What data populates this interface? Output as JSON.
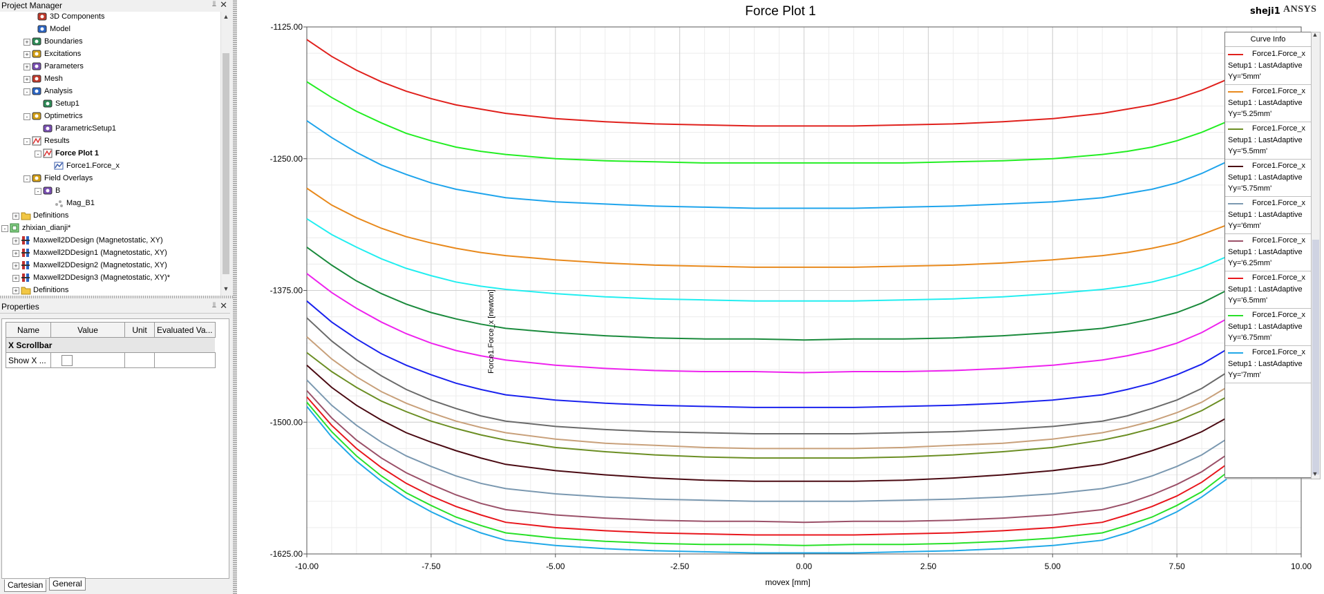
{
  "project_manager": {
    "title": "Project Manager",
    "tree": [
      {
        "label": "3D Components",
        "icon": "3d-components-icon",
        "expand": ""
      },
      {
        "label": "Model",
        "icon": "model-icon",
        "expand": ""
      },
      {
        "label": "Boundaries",
        "icon": "boundaries-icon",
        "expand": "+"
      },
      {
        "label": "Excitations",
        "icon": "excitations-icon",
        "expand": "+"
      },
      {
        "label": "Parameters",
        "icon": "parameters-icon",
        "expand": "+"
      },
      {
        "label": "Mesh",
        "icon": "mesh-icon",
        "expand": "+"
      },
      {
        "label": "Analysis",
        "icon": "analysis-icon",
        "expand": "−"
      },
      {
        "label": "Setup1",
        "icon": "setup-icon",
        "expand": ""
      },
      {
        "label": "Optimetrics",
        "icon": "optimetrics-icon",
        "expand": "−"
      },
      {
        "label": "ParametricSetup1",
        "icon": "parametric-setup-icon",
        "expand": ""
      },
      {
        "label": "Results",
        "icon": "results-icon",
        "expand": "−"
      },
      {
        "label": "Force Plot 1",
        "icon": "force-plot-icon",
        "expand": "−"
      },
      {
        "label": "Force1.Force_x",
        "icon": "trace-icon",
        "expand": ""
      },
      {
        "label": "Field Overlays",
        "icon": "field-overlays-icon",
        "expand": "−"
      },
      {
        "label": "B",
        "icon": "b-field-icon",
        "expand": "−"
      },
      {
        "label": "Mag_B1",
        "icon": "mag-plot-icon",
        "expand": ""
      },
      {
        "label": "Definitions",
        "icon": "folder-icon",
        "expand": "+"
      },
      {
        "label": "zhixian_dianji*",
        "icon": "project-icon",
        "expand": "−"
      },
      {
        "label": "Maxwell2DDesign (Magnetostatic, XY)",
        "icon": "design-icon",
        "expand": "+"
      },
      {
        "label": "Maxwell2DDesign1 (Magnetostatic, XY)",
        "icon": "design-icon",
        "expand": "+"
      },
      {
        "label": "Maxwell2DDesign2 (Magnetostatic, XY)",
        "icon": "design-icon",
        "expand": "+"
      },
      {
        "label": "Maxwell2DDesign3 (Magnetostatic, XY)*",
        "icon": "design-icon",
        "expand": "+"
      },
      {
        "label": "Definitions",
        "icon": "folder-icon",
        "expand": "+"
      }
    ]
  },
  "properties": {
    "title": "Properties",
    "columns": [
      "Name",
      "Value",
      "Unit",
      "Evaluated Va..."
    ],
    "group": "X Scrollbar",
    "row_name": "Show X ...",
    "tabs": [
      "Cartesian",
      "General"
    ]
  },
  "plot": {
    "design_name": "sheji1",
    "brand": "ANSYS"
  },
  "legend": {
    "title": "Curve Info",
    "setup": "Setup1 : LastAdaptive"
  },
  "chart_data": {
    "type": "line",
    "title": "Force Plot 1",
    "xlabel": "movex [mm]",
    "ylabel": "Force1.Force_x [newton]",
    "xlim": [
      -10,
      10
    ],
    "ylim": [
      -1625,
      -1125
    ],
    "x_ticks": [
      "-10.00",
      "-7.50",
      "-5.00",
      "-2.50",
      "0.00",
      "2.50",
      "5.00",
      "7.50",
      "10.00"
    ],
    "y_ticks": [
      "-1125.00",
      "-1250.00",
      "-1375.00",
      "-1500.00",
      "-1625.00"
    ],
    "grid": true,
    "legend_position": "right",
    "x": [
      -10,
      -9.5,
      -9,
      -8.5,
      -8,
      -7.5,
      -7,
      -6.5,
      -6,
      -5,
      -4,
      -3,
      -2,
      -1,
      0,
      1,
      2,
      3,
      4,
      5,
      6,
      6.5,
      7,
      7.5,
      8,
      8.5
    ],
    "series": [
      {
        "name": "Force1.Force_x",
        "variation": "Yy='5mm'",
        "color": "#e0201c",
        "values": [
          -1137,
          -1153,
          -1166,
          -1177,
          -1186,
          -1193,
          -1199,
          -1203,
          -1207,
          -1212,
          -1215,
          -1217,
          -1218,
          -1219,
          -1219,
          -1219,
          -1218,
          -1217,
          -1215,
          -1212,
          -1207,
          -1203,
          -1199,
          -1193,
          -1185,
          -1175
        ]
      },
      {
        "name": "Force1.Force_x",
        "variation": "Yy='5.25mm'",
        "color": "#e8891c",
        "values": [
          -1278,
          -1294,
          -1306,
          -1316,
          -1324,
          -1330,
          -1335,
          -1339,
          -1342,
          -1346,
          -1349,
          -1351,
          -1352,
          -1353,
          -1353,
          -1353,
          -1352,
          -1351,
          -1349,
          -1346,
          -1342,
          -1339,
          -1335,
          -1330,
          -1322,
          -1313
        ]
      },
      {
        "name": "Force1.Force_x",
        "variation": "Yy='5.5mm'",
        "color": "#6b8e23",
        "values": [
          -1434,
          -1452,
          -1467,
          -1480,
          -1490,
          -1499,
          -1506,
          -1512,
          -1517,
          -1524,
          -1528,
          -1531,
          -1533,
          -1534,
          -1534,
          -1534,
          -1533,
          -1531,
          -1528,
          -1524,
          -1517,
          -1512,
          -1506,
          -1499,
          -1489,
          -1476
        ]
      },
      {
        "name": "Force1.Force_x",
        "variation": "Yy='5.75mm'",
        "color": "#4a0a12",
        "values": [
          -1446,
          -1467,
          -1484,
          -1498,
          -1510,
          -1519,
          -1527,
          -1534,
          -1540,
          -1546,
          -1550,
          -1553,
          -1555,
          -1556,
          -1556,
          -1556,
          -1555,
          -1553,
          -1550,
          -1546,
          -1540,
          -1534,
          -1527,
          -1519,
          -1509,
          -1496
        ]
      },
      {
        "name": "Force1.Force_x",
        "variation": "Yy='6mm'",
        "color": "#7a98b0",
        "values": [
          -1460,
          -1484,
          -1503,
          -1519,
          -1532,
          -1542,
          -1551,
          -1558,
          -1563,
          -1568,
          -1571,
          -1573,
          -1574,
          -1575,
          -1575,
          -1575,
          -1574,
          -1573,
          -1571,
          -1568,
          -1563,
          -1558,
          -1551,
          -1542,
          -1531,
          -1516
        ]
      },
      {
        "name": "Force1.Force_x",
        "variation": "Yy='6.25mm'",
        "color": "#9a5068",
        "values": [
          -1470,
          -1496,
          -1517,
          -1534,
          -1548,
          -1559,
          -1569,
          -1577,
          -1583,
          -1588,
          -1591,
          -1593,
          -1594,
          -1594,
          -1595,
          -1594,
          -1594,
          -1593,
          -1591,
          -1588,
          -1583,
          -1577,
          -1569,
          -1559,
          -1547,
          -1531
        ]
      },
      {
        "name": "Force1.Force_x",
        "variation": "Yy='6.5mm'",
        "color": "#e8161c",
        "values": [
          -1476,
          -1503,
          -1525,
          -1543,
          -1558,
          -1570,
          -1580,
          -1588,
          -1595,
          -1600,
          -1603,
          -1605,
          -1606,
          -1607,
          -1607,
          -1607,
          -1606,
          -1605,
          -1603,
          -1600,
          -1595,
          -1588,
          -1580,
          -1570,
          -1557,
          -1540
        ]
      },
      {
        "name": "Force1.Force_x",
        "variation": "Yy='6.75mm'",
        "color": "#28e028",
        "values": [
          -1481,
          -1509,
          -1532,
          -1551,
          -1567,
          -1579,
          -1590,
          -1598,
          -1605,
          -1610,
          -1613,
          -1615,
          -1616,
          -1616,
          -1617,
          -1616,
          -1616,
          -1615,
          -1613,
          -1610,
          -1605,
          -1598,
          -1590,
          -1579,
          -1566,
          -1548
        ]
      },
      {
        "name": "Force1.Force_x",
        "variation": "Yy='7mm'",
        "color": "#20a8e8",
        "values": [
          -1485,
          -1514,
          -1537,
          -1556,
          -1572,
          -1585,
          -1596,
          -1605,
          -1612,
          -1617,
          -1620,
          -1622,
          -1623,
          -1624,
          -1624,
          -1624,
          -1623,
          -1622,
          -1620,
          -1617,
          -1612,
          -1605,
          -1596,
          -1585,
          -1571,
          -1554
        ]
      },
      {
        "name": "",
        "variation": "",
        "color": "#22ee22",
        "values": [
          -1177,
          -1192,
          -1205,
          -1216,
          -1226,
          -1233,
          -1239,
          -1243,
          -1246,
          -1250,
          -1252,
          -1253,
          -1254,
          -1254,
          -1254,
          -1254,
          -1254,
          -1253,
          -1252,
          -1250,
          -1246,
          -1243,
          -1239,
          -1233,
          -1225,
          -1215
        ]
      },
      {
        "name": "",
        "variation": "",
        "color": "#1ea4ec",
        "values": [
          -1214,
          -1230,
          -1244,
          -1256,
          -1265,
          -1273,
          -1279,
          -1283,
          -1287,
          -1291,
          -1293,
          -1295,
          -1296,
          -1297,
          -1297,
          -1297,
          -1296,
          -1295,
          -1293,
          -1291,
          -1287,
          -1283,
          -1279,
          -1273,
          -1264,
          -1253
        ]
      },
      {
        "name": "",
        "variation": "",
        "color": "#22eef0",
        "values": [
          -1307,
          -1322,
          -1334,
          -1345,
          -1354,
          -1361,
          -1367,
          -1371,
          -1374,
          -1378,
          -1381,
          -1383,
          -1384,
          -1385,
          -1385,
          -1385,
          -1384,
          -1383,
          -1381,
          -1378,
          -1374,
          -1371,
          -1367,
          -1361,
          -1353,
          -1343
        ]
      },
      {
        "name": "",
        "variation": "",
        "color": "#1a8a3c",
        "values": [
          -1334,
          -1351,
          -1366,
          -1378,
          -1388,
          -1396,
          -1402,
          -1407,
          -1411,
          -1415,
          -1418,
          -1420,
          -1421,
          -1421,
          -1422,
          -1421,
          -1421,
          -1420,
          -1418,
          -1415,
          -1411,
          -1407,
          -1402,
          -1396,
          -1387,
          -1375
        ]
      },
      {
        "name": "",
        "variation": "",
        "color": "#ee22ee",
        "values": [
          -1359,
          -1377,
          -1392,
          -1405,
          -1416,
          -1425,
          -1432,
          -1437,
          -1441,
          -1446,
          -1449,
          -1451,
          -1452,
          -1452,
          -1453,
          -1452,
          -1452,
          -1451,
          -1449,
          -1446,
          -1441,
          -1437,
          -1432,
          -1425,
          -1415,
          -1402
        ]
      },
      {
        "name": "",
        "variation": "",
        "color": "#1a22ee",
        "values": [
          -1385,
          -1405,
          -1421,
          -1435,
          -1446,
          -1455,
          -1463,
          -1469,
          -1474,
          -1479,
          -1482,
          -1484,
          -1485,
          -1486,
          -1486,
          -1486,
          -1485,
          -1484,
          -1482,
          -1479,
          -1474,
          -1469,
          -1463,
          -1455,
          -1445,
          -1431
        ]
      },
      {
        "name": "",
        "variation": "",
        "color": "#6a6a6a",
        "values": [
          -1401,
          -1423,
          -1441,
          -1456,
          -1469,
          -1479,
          -1487,
          -1494,
          -1499,
          -1504,
          -1507,
          -1509,
          -1510,
          -1511,
          -1511,
          -1511,
          -1510,
          -1509,
          -1507,
          -1504,
          -1499,
          -1494,
          -1487,
          -1479,
          -1468,
          -1453
        ]
      },
      {
        "name": "",
        "variation": "",
        "color": "#c8a07a",
        "values": [
          -1419,
          -1440,
          -1457,
          -1471,
          -1482,
          -1491,
          -1499,
          -1505,
          -1510,
          -1516,
          -1520,
          -1522,
          -1524,
          -1525,
          -1525,
          -1525,
          -1524,
          -1522,
          -1520,
          -1516,
          -1510,
          -1505,
          -1499,
          -1491,
          -1481,
          -1467
        ]
      }
    ]
  }
}
